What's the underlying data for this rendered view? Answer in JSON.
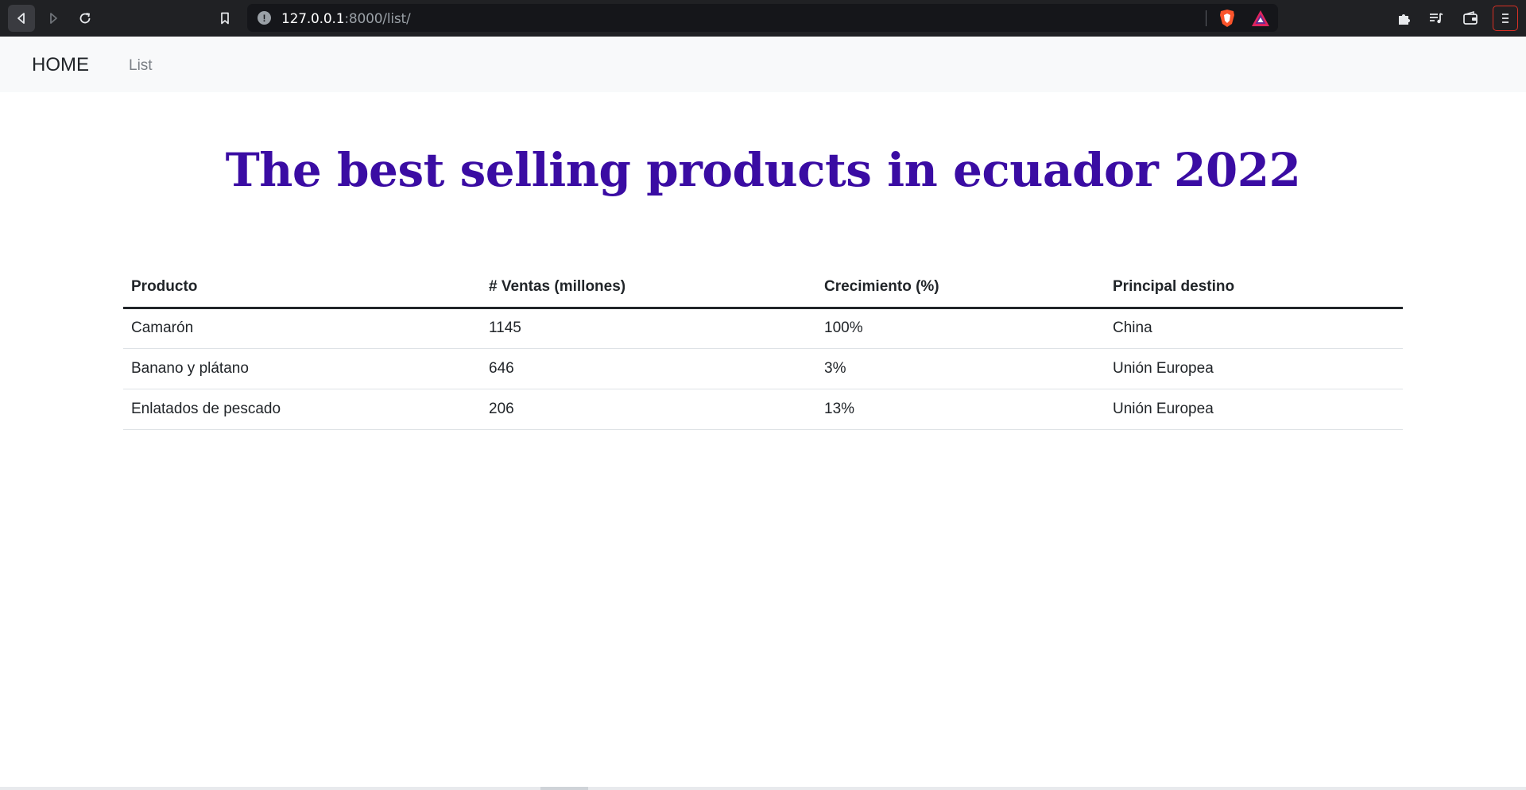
{
  "browser": {
    "url_host": "127.0.0.1",
    "url_path": ":8000/list/",
    "colors": {
      "chrome_bg": "#202124",
      "urlbar_bg": "#15161a",
      "brave_orange": "#fb542b",
      "rewards_red": "#e0245e"
    }
  },
  "navbar": {
    "brand": "HOME",
    "links": [
      {
        "label": "List"
      }
    ]
  },
  "page": {
    "title": "The best selling products in ecuador 2022",
    "title_color": "#3a0ca3"
  },
  "table": {
    "headers": [
      "Producto",
      "# Ventas (millones)",
      "Crecimiento (%)",
      "Principal destino"
    ],
    "rows": [
      [
        "Camarón",
        "1145",
        "100%",
        "China"
      ],
      [
        "Banano y plátano",
        "646",
        "3%",
        "Unión Europea"
      ],
      [
        "Enlatados de pescado",
        "206",
        "13%",
        "Unión Europea"
      ]
    ]
  }
}
